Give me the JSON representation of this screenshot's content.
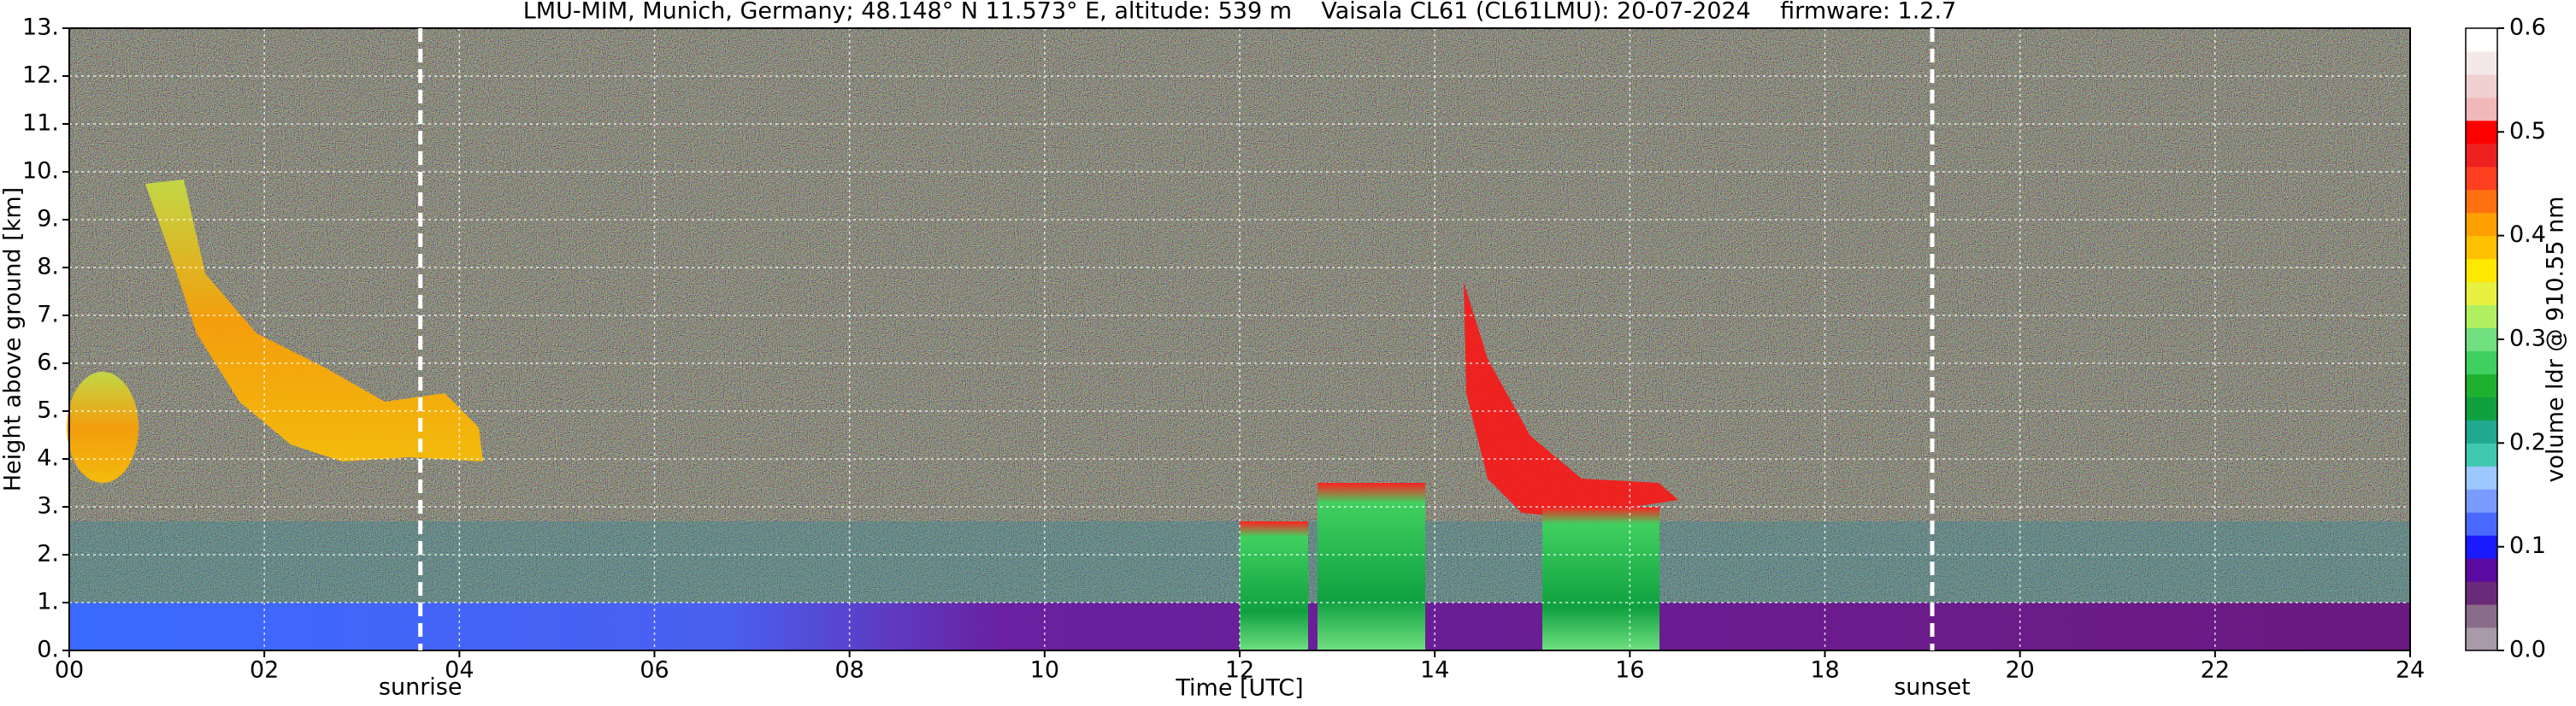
{
  "chart_data": {
    "type": "heatmap",
    "title": "LMU-MIM, Munich, Germany; 48.148° N 11.573° E, altitude: 539 m    Vaisala CL61 (CL61LMU): 20-07-2024    firmware: 1.2.7",
    "x_label": "Time [UTC]",
    "y_label": "Height above ground [km]",
    "xlim": [
      0,
      24
    ],
    "xticks": [
      {
        "value": 0,
        "label": "00"
      },
      {
        "value": 2,
        "label": "02"
      },
      {
        "value": 4,
        "label": "04"
      },
      {
        "value": 6,
        "label": "06"
      },
      {
        "value": 8,
        "label": "08"
      },
      10,
      12,
      14,
      16,
      18,
      20,
      22,
      24
    ],
    "ylim": [
      0,
      13
    ],
    "yticks": [
      {
        "value": 0,
        "label": "0."
      },
      {
        "value": 1,
        "label": "1."
      },
      {
        "value": 2,
        "label": "2."
      },
      {
        "value": 3,
        "label": "3."
      },
      {
        "value": 4,
        "label": "4."
      },
      {
        "value": 5,
        "label": "5."
      },
      {
        "value": 6,
        "label": "6."
      },
      {
        "value": 7,
        "label": "7."
      },
      {
        "value": 8,
        "label": "8."
      },
      {
        "value": 9,
        "label": "9."
      },
      {
        "value": 10,
        "label": "10."
      },
      {
        "value": 11,
        "label": "11."
      },
      {
        "value": 12,
        "label": "12."
      },
      {
        "value": 13,
        "label": "13."
      }
    ],
    "grid": true,
    "annotations": [
      {
        "label": "sunrise",
        "x": 3.6
      },
      {
        "label": "sunset",
        "x": 19.1
      }
    ],
    "colorbar": {
      "label": "volume ldr @ 910.55 nm",
      "lim": [
        0,
        0.6
      ],
      "ticks": [
        {
          "value": 0,
          "label": "0.0"
        },
        0.1,
        0.2,
        0.3,
        0.4,
        0.5,
        0.6
      ],
      "colors": [
        "#a89aa8",
        "#8a6c8a",
        "#6a2a7a",
        "#5a0aa0",
        "#1a1aff",
        "#4a6aff",
        "#7a9aff",
        "#9ac8ff",
        "#40c8b0",
        "#20a890",
        "#10a040",
        "#20b030",
        "#40d060",
        "#70e080",
        "#b0f060",
        "#e8f040",
        "#ffe800",
        "#ffc000",
        "#ffa000",
        "#ff7010",
        "#ff4020",
        "#ee2020",
        "#ff0000",
        "#f0b8b8",
        "#f0d0d0",
        "#f4e8e8",
        "#ffffff"
      ]
    }
  }
}
